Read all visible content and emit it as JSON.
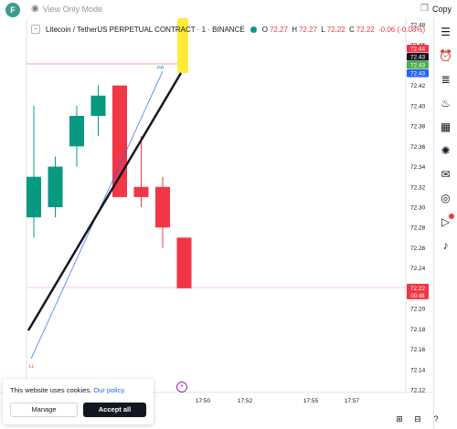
{
  "topbar": {
    "avatar_letter": "F",
    "view_mode": "View Only Mode",
    "copy_label": "Copy"
  },
  "legend": {
    "symbol": "Litecoin / TetherUS PERPETUAL CONTRACT · 1 · BINANCE",
    "o_label": "O",
    "o_value": "72.27",
    "h_label": "H",
    "h_value": "72.27",
    "l_label": "L",
    "l_value": "72.22",
    "c_label": "C",
    "c_value": "72.22",
    "change": "-0.06 (-0.08%)"
  },
  "drawings": {
    "hh_label": "HH",
    "ll_label": "LL"
  },
  "price_badges": [
    {
      "text": "72.44",
      "color": "#f23645"
    },
    {
      "text": "72.43",
      "color": "#131722"
    },
    {
      "text": "72.43",
      "color": "#4caf50"
    },
    {
      "text": "72.43",
      "color": "#2962ff"
    }
  ],
  "last_price": {
    "price": "72.22",
    "countdown": "00:48",
    "color": "#f23645"
  },
  "colors": {
    "up": "#089981",
    "down": "#f23645",
    "yellow": "#ffeb3b"
  },
  "chart_data": {
    "type": "candlestick",
    "y_ticks": [
      "72.48",
      "72.46",
      "72.44",
      "72.42",
      "72.40",
      "72.38",
      "72.36",
      "72.34",
      "72.32",
      "72.30",
      "72.28",
      "72.26",
      "72.24",
      "72.22",
      "72.20",
      "72.18",
      "72.16",
      "72.14",
      "72.12"
    ],
    "x_ticks": [
      "17:50",
      "17:52",
      "17:55",
      "17:57"
    ],
    "ylim": [
      72.12,
      72.48
    ],
    "candles": [
      {
        "o": 72.29,
        "h": 72.4,
        "l": 72.27,
        "c": 72.33
      },
      {
        "o": 72.3,
        "h": 72.35,
        "l": 72.29,
        "c": 72.34
      },
      {
        "o": 72.36,
        "h": 72.4,
        "l": 72.34,
        "c": 72.39
      },
      {
        "o": 72.39,
        "h": 72.42,
        "l": 72.37,
        "c": 72.41
      },
      {
        "o": 72.42,
        "h": 72.42,
        "l": 72.31,
        "c": 72.31
      },
      {
        "o": 72.32,
        "h": 72.37,
        "l": 72.3,
        "c": 72.31
      },
      {
        "o": 72.32,
        "h": 72.33,
        "l": 72.26,
        "c": 72.28
      },
      {
        "o": 72.27,
        "h": 72.27,
        "l": 72.22,
        "c": 72.22
      }
    ]
  },
  "sidebar": [
    "watchlist-icon",
    "alarm-icon",
    "list-add-icon",
    "flame-icon",
    "calendar-icon",
    "lightbulb-icon",
    "chat-icon",
    "podcast-icon",
    "play-icon",
    "bell-icon"
  ],
  "cookie": {
    "text": "This website uses cookies.",
    "policy": "Our policy.",
    "manage": "Manage",
    "accept": "Accept all"
  }
}
